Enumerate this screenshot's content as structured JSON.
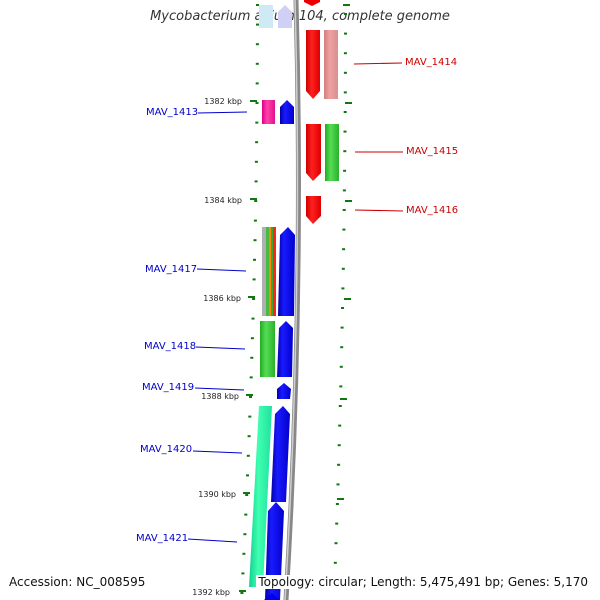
{
  "title": "Mycobacterium avium 104, complete genome",
  "footer": {
    "accession": "Accession: NC_008595",
    "summary": "Topology: circular; Length: 5,475,491 bp; Genes: 5,170"
  },
  "scale_labels": [
    "1382 kbp",
    "1384 kbp",
    "1386 kbp",
    "1388 kbp",
    "1390 kbp",
    "1392 kbp"
  ],
  "genes_left": [
    "MAV_1413",
    "MAV_1417",
    "MAV_1418",
    "MAV_1419",
    "MAV_1420",
    "MAV_1421"
  ],
  "genes_right": [
    "MAV_1414",
    "MAV_1415",
    "MAV_1416"
  ],
  "colors": {
    "forward_gene": "#0000ee",
    "reverse_gene": "#ee0000",
    "label_left": "#0000cc",
    "label_right": "#cc0000",
    "backbone": "#888888",
    "tick": "#117711"
  }
}
